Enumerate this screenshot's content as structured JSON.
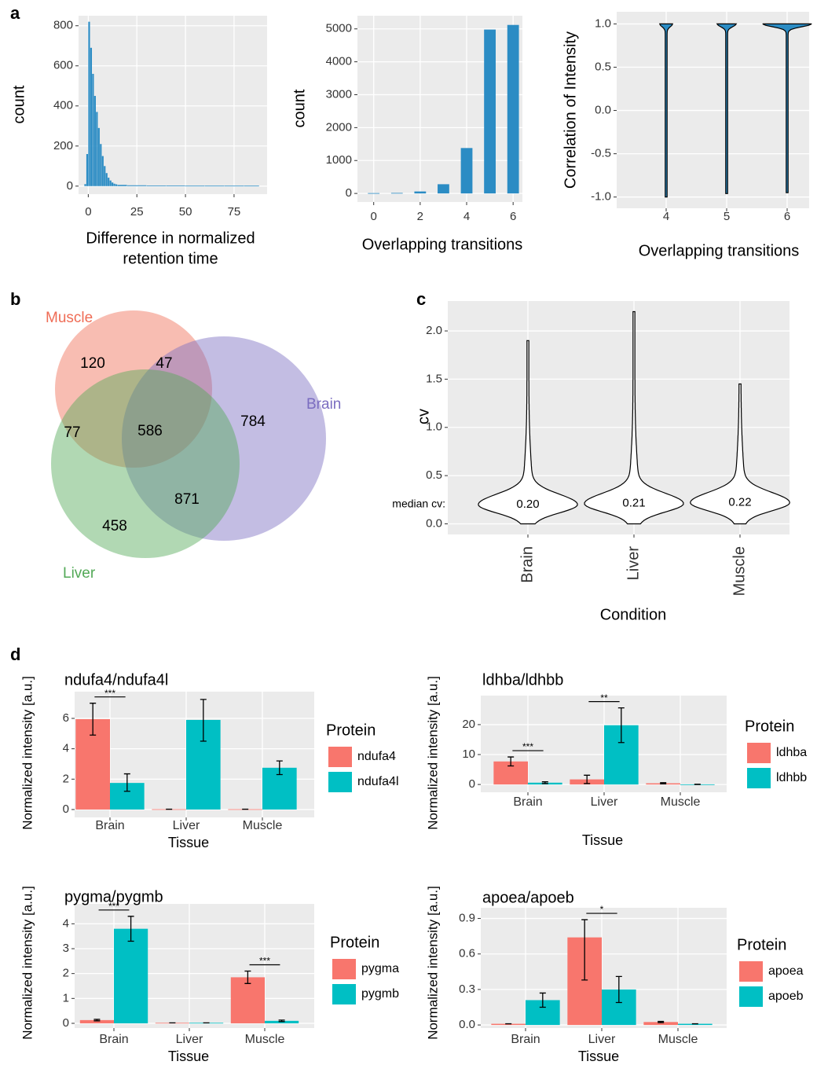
{
  "panel_labels": [
    "a",
    "b",
    "c",
    "d"
  ],
  "chart_data": [
    {
      "type": "histogram",
      "xlabel": [
        "Difference in normalized",
        "retention time"
      ],
      "ylabel": "count",
      "bins": [
        -2,
        -1,
        0,
        1,
        2,
        3,
        4,
        5,
        6,
        7,
        8,
        9,
        10,
        11,
        12,
        13,
        14,
        15,
        20,
        30,
        40,
        50,
        60,
        70,
        80,
        88
      ],
      "values": [
        10,
        160,
        820,
        690,
        560,
        450,
        370,
        290,
        210,
        150,
        100,
        65,
        42,
        28,
        18,
        12,
        9,
        6,
        4,
        3,
        3,
        2,
        2,
        2,
        2
      ],
      "color": "#2b8cc4",
      "xlim": [
        -5,
        92
      ],
      "ylim": [
        -40,
        850
      ],
      "xticks": [
        0,
        25,
        50,
        75
      ],
      "yticks": [
        0,
        200,
        400,
        600,
        800
      ],
      "grid": true
    },
    {
      "type": "bar",
      "xlabel": "Overlapping transitions",
      "ylabel": "count",
      "x": [
        0,
        1,
        2,
        3,
        4,
        5,
        6
      ],
      "values": [
        10,
        15,
        60,
        280,
        1380,
        4980,
        5120
      ],
      "color": "#2b8cc4",
      "xlim": [
        -0.7,
        6.4
      ],
      "ylim": [
        -260,
        5400
      ],
      "xticks": [
        0,
        2,
        4,
        6
      ],
      "yticks": [
        0,
        1000,
        2000,
        3000,
        4000,
        5000
      ],
      "grid": true
    },
    {
      "type": "violin",
      "xlabel": "Overlapping transitions",
      "ylabel": "Correlation of Intensity",
      "categories": [
        "4",
        "5",
        "6"
      ],
      "min": [
        -1.0,
        -0.96,
        -0.95
      ],
      "max": [
        1.0,
        1.0,
        1.0
      ],
      "color": "#2b8cc4",
      "ylim": [
        -1.13,
        1.14
      ],
      "yticks": [
        {
          "value": -1,
          "label": "-1.0"
        },
        -0.5,
        {
          "value": 0,
          "label": "0.0"
        },
        0.5,
        {
          "value": 1,
          "label": "1.0"
        }
      ],
      "grid": true
    },
    {
      "type": "venn",
      "sets": [
        {
          "name": "Muscle",
          "color": "#ef6c55"
        },
        {
          "name": "Brain",
          "color": "#7a6cc0"
        },
        {
          "name": "Liver",
          "color": "#53a957"
        }
      ],
      "regions": [
        120,
        47,
        77,
        586,
        784,
        871,
        458
      ]
    },
    {
      "type": "violin",
      "xlabel": "Condition",
      "ylabel": "cv",
      "annotation": "median cv:",
      "categories": [
        "Brain",
        "Liver",
        "Muscle"
      ],
      "values": [
        0.2,
        0.21,
        0.22
      ],
      "value_labels": [
        "0.20",
        "0.21",
        "0.22"
      ],
      "min": [
        0.0,
        0.0,
        0.0
      ],
      "max": [
        1.9,
        2.2,
        1.45
      ],
      "color": "#ffffff",
      "ylim": [
        -0.11,
        2.31
      ],
      "yticks": [
        {
          "value": 0,
          "label": "0.0"
        },
        0.5,
        {
          "value": 1,
          "label": "1.0"
        },
        1.5,
        {
          "value": 2,
          "label": "2.0"
        }
      ],
      "grid": true
    },
    {
      "type": "bar",
      "title": "ndufa4/ndufa4l",
      "xlabel": "Tissue",
      "ylabel": "Normalized intensity [a.u.]",
      "legend_title": "Protein",
      "categories": [
        "Brain",
        "Liver",
        "Muscle"
      ],
      "significance": [
        "***",
        null,
        null
      ],
      "series": [
        {
          "name": "ndufa4",
          "color": "#f8766d",
          "values": [
            5.95,
            0.02,
            0.02
          ],
          "lower": [
            4.9,
            0.02,
            0.02
          ],
          "upper": [
            7.0,
            0.02,
            0.02
          ]
        },
        {
          "name": "ndufa4l",
          "color": "#00bfc4",
          "values": [
            1.75,
            5.9,
            2.75
          ],
          "lower": [
            1.2,
            4.5,
            2.3
          ],
          "upper": [
            2.35,
            7.25,
            3.2
          ]
        }
      ],
      "ylim": [
        -0.52,
        7.76
      ],
      "yticks": [
        0,
        2,
        4,
        6
      ],
      "grid": true
    },
    {
      "type": "bar",
      "title": "ldhba/ldhbb",
      "xlabel": "Tissue",
      "ylabel": "Normalized intensity [a.u.]",
      "legend_title": "Protein",
      "categories": [
        "Brain",
        "Liver",
        "Muscle"
      ],
      "significance": [
        "***",
        "**",
        null
      ],
      "series": [
        {
          "name": "ldhba",
          "color": "#f8766d",
          "values": [
            7.7,
            1.7,
            0.4
          ],
          "lower": [
            6.2,
            0.3,
            0.2
          ],
          "upper": [
            9.2,
            3.1,
            0.6
          ]
        },
        {
          "name": "ldhbb",
          "color": "#00bfc4",
          "values": [
            0.6,
            19.8,
            0.05
          ],
          "lower": [
            0.3,
            14.0,
            0.0
          ],
          "upper": [
            0.9,
            25.6,
            0.1
          ]
        }
      ],
      "ylim": [
        -2.6,
        29.7
      ],
      "yticks": [
        0,
        10,
        20
      ],
      "grid": true
    },
    {
      "type": "bar",
      "title": "pygma/pygmb",
      "xlabel": "Tissue",
      "ylabel": "Normalized intensity [a.u.]",
      "legend_title": "Protein",
      "categories": [
        "Brain",
        "Liver",
        "Muscle"
      ],
      "significance": [
        "***",
        null,
        "***"
      ],
      "series": [
        {
          "name": "pygma",
          "color": "#f8766d",
          "values": [
            0.13,
            0.02,
            1.85
          ],
          "lower": [
            0.1,
            0.02,
            1.6
          ],
          "upper": [
            0.16,
            0.02,
            2.1
          ]
        },
        {
          "name": "pygmb",
          "color": "#00bfc4",
          "values": [
            3.8,
            0.02,
            0.1
          ],
          "lower": [
            3.3,
            0.02,
            0.07
          ],
          "upper": [
            4.3,
            0.02,
            0.13
          ]
        }
      ],
      "ylim": [
        -0.19,
        4.8
      ],
      "yticks": [
        0,
        1,
        2,
        3,
        4
      ],
      "grid": true
    },
    {
      "type": "bar",
      "title": "apoea/apoeb",
      "xlabel": "Tissue",
      "ylabel": "Normalized intensity [a.u.]",
      "legend_title": "Protein",
      "categories": [
        "Brain",
        "Liver",
        "Muscle"
      ],
      "significance": [
        null,
        "*",
        null
      ],
      "series": [
        {
          "name": "apoea",
          "color": "#f8766d",
          "values": [
            0.01,
            0.74,
            0.025
          ],
          "lower": [
            0.01,
            0.38,
            0.02
          ],
          "upper": [
            0.01,
            0.89,
            0.03
          ]
        },
        {
          "name": "apoeb",
          "color": "#00bfc4",
          "values": [
            0.21,
            0.3,
            0.01
          ],
          "lower": [
            0.15,
            0.19,
            0.01
          ],
          "upper": [
            0.27,
            0.41,
            0.01
          ]
        }
      ],
      "ylim": [
        -0.026,
        0.99
      ],
      "yticks": [
        {
          "value": 0,
          "label": "0.0"
        },
        0.3,
        0.6,
        0.9
      ],
      "grid": true
    }
  ]
}
